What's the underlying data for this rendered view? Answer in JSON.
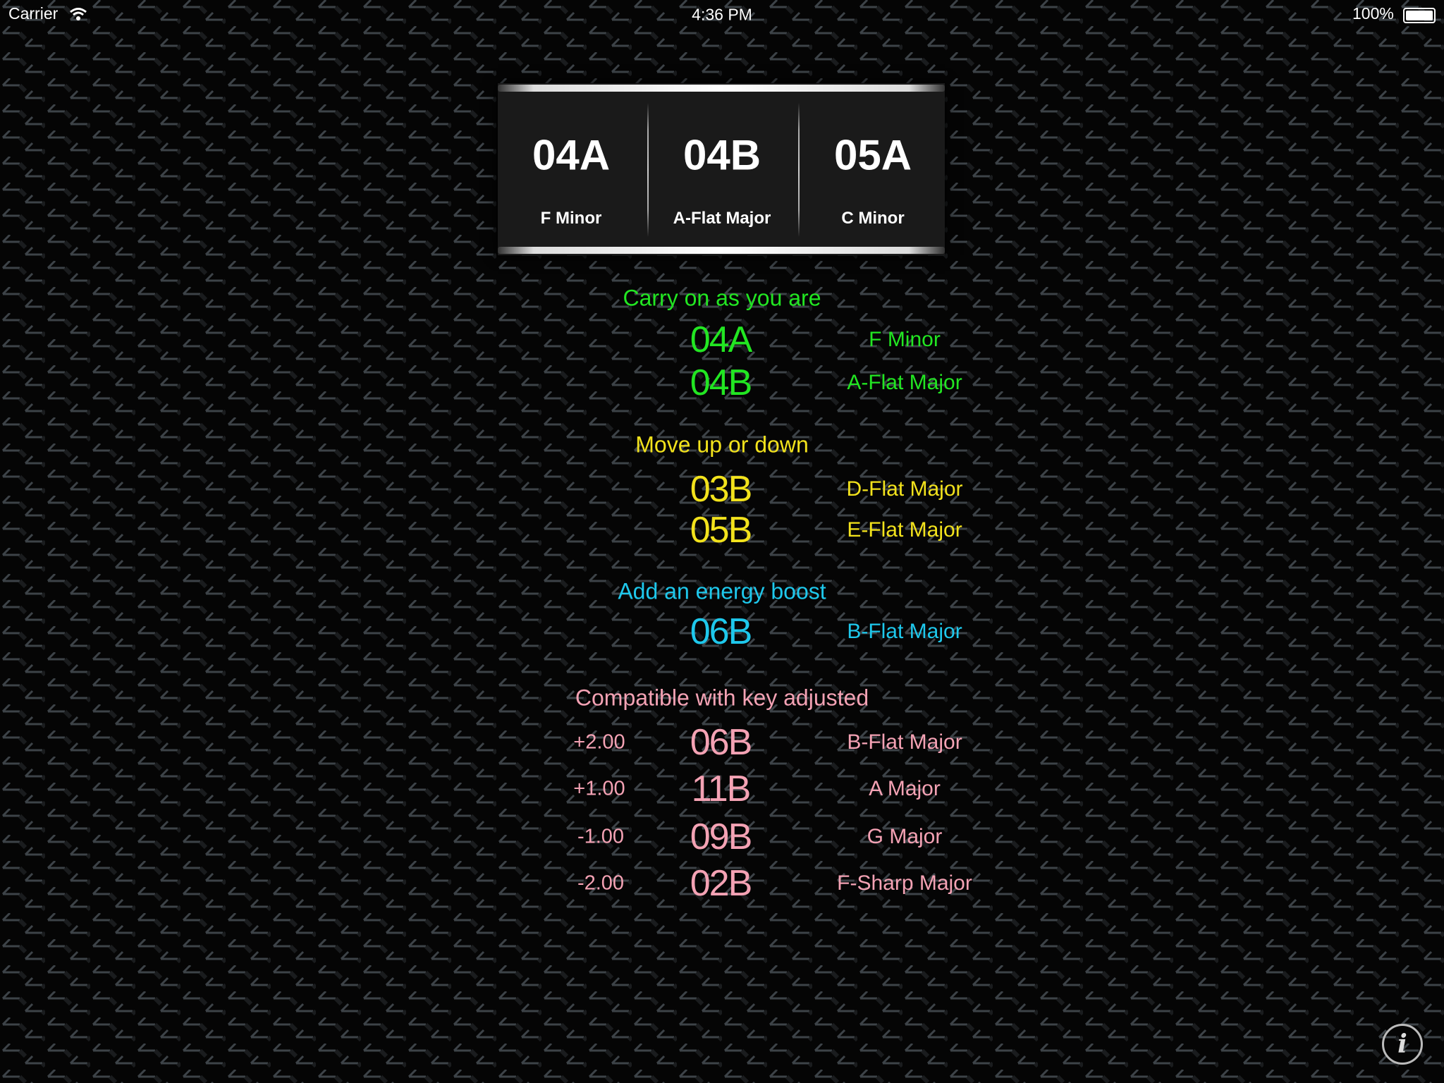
{
  "status_bar": {
    "carrier": "Carrier",
    "time": "4:36 PM",
    "battery": "100%",
    "wifi_icon": "wifi-icon",
    "battery_icon": "battery-icon"
  },
  "picker": {
    "columns": [
      {
        "code": "04A",
        "name": "F Minor"
      },
      {
        "code": "04B",
        "name": "A-Flat Major"
      },
      {
        "code": "05A",
        "name": "C Minor"
      }
    ]
  },
  "colors": {
    "carry_on": "#22e622",
    "move": "#f2e21c",
    "energy": "#1ec8ec",
    "compatible": "#f4a2b4"
  },
  "sections": {
    "carry_on": {
      "heading": "Carry on as you are",
      "rows": [
        {
          "code": "04A",
          "name": "F Minor"
        },
        {
          "code": "04B",
          "name": "A-Flat Major"
        }
      ]
    },
    "move": {
      "heading": "Move up or down",
      "rows": [
        {
          "code": "03B",
          "name": "D-Flat Major"
        },
        {
          "code": "05B",
          "name": "E-Flat Major"
        }
      ]
    },
    "energy": {
      "heading": "Add an energy boost",
      "rows": [
        {
          "code": "06B",
          "name": "B-Flat Major"
        }
      ]
    },
    "compatible": {
      "heading": "Compatible with key adjusted",
      "rows": [
        {
          "offset": "+2.00",
          "code": "06B",
          "name": "B-Flat Major"
        },
        {
          "offset": "+1.00",
          "code": "11B",
          "name": "A Major"
        },
        {
          "offset": "-1.00",
          "code": "09B",
          "name": "G Major"
        },
        {
          "offset": "-2.00",
          "code": "02B",
          "name": "F-Sharp Major"
        }
      ]
    }
  },
  "info_button": {
    "icon": "info-icon",
    "glyph": "i"
  }
}
